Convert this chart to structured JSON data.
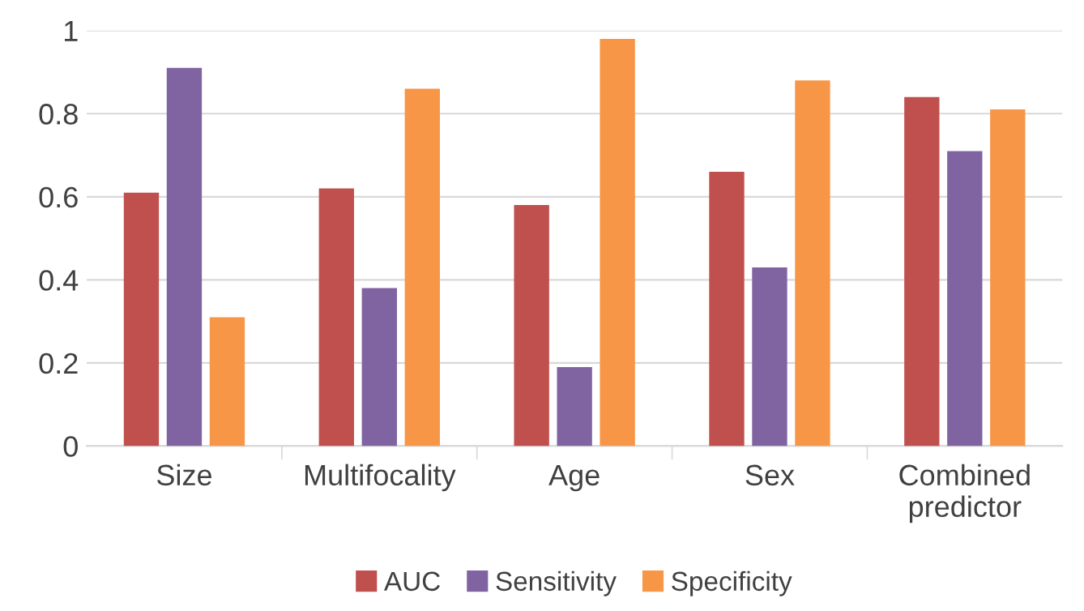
{
  "chart_data": {
    "type": "bar",
    "categories": [
      "Size",
      "Multifocality",
      "Age",
      "Sex",
      "Combined\npredictor"
    ],
    "series": [
      {
        "name": "AUC",
        "color": "#c0504d",
        "values": [
          0.61,
          0.62,
          0.58,
          0.66,
          0.84
        ]
      },
      {
        "name": "Sensitivity",
        "color": "#8064a2",
        "values": [
          0.91,
          0.38,
          0.19,
          0.43,
          0.71
        ]
      },
      {
        "name": "Specificity",
        "color": "#f79646",
        "values": [
          0.31,
          0.86,
          0.98,
          0.88,
          0.81
        ]
      }
    ],
    "ylim": [
      0,
      1
    ],
    "yticks": [
      0,
      0.2,
      0.4,
      0.6,
      0.8,
      1
    ],
    "grid": "y",
    "legend": "bottom"
  }
}
